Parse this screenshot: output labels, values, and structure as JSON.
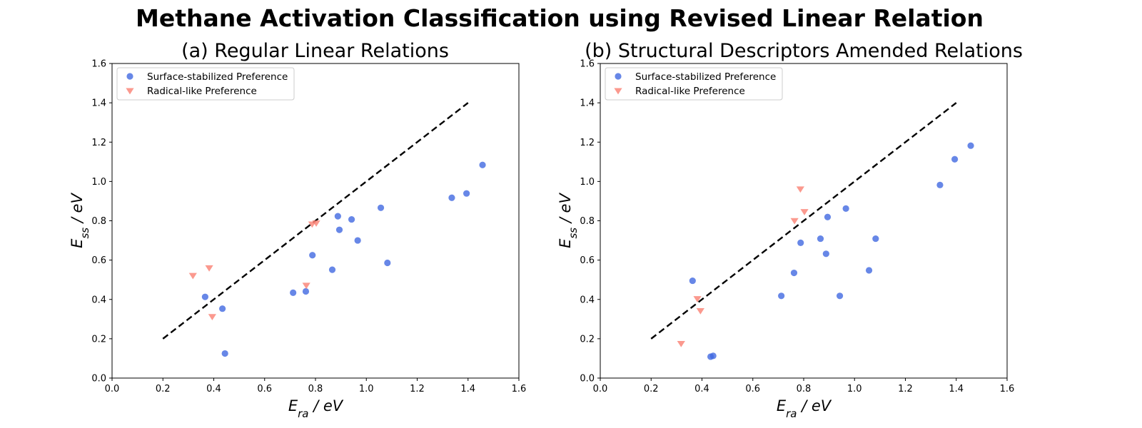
{
  "figure": {
    "title": "Methane Activation Classification using Revised Linear Relation"
  },
  "chart_data": [
    {
      "type": "scatter",
      "title": "(a) Regular Linear Relations",
      "xlabel": {
        "main": "E",
        "sub": "ra",
        "unit": " / eV"
      },
      "ylabel": {
        "main": "E",
        "sub": "ss",
        "unit": " / eV"
      },
      "xlim": [
        0,
        1.6
      ],
      "ylim": [
        0,
        1.6
      ],
      "xticks": [
        "0.0",
        "0.2",
        "0.4",
        "0.6",
        "0.8",
        "1.0",
        "1.2",
        "1.4",
        "1.6"
      ],
      "yticks": [
        "0.0",
        "0.2",
        "0.4",
        "0.6",
        "0.8",
        "1.0",
        "1.2",
        "1.4",
        "1.6"
      ],
      "grid": false,
      "legend_position": "upper-left",
      "reference_line": {
        "x": [
          0.2,
          1.4
        ],
        "y": [
          0.2,
          1.4
        ],
        "style": "dashed",
        "color": "#000000"
      },
      "series": [
        {
          "name": "Surface-stabilized Preference",
          "marker": "circle",
          "color": "#4169E1",
          "points": [
            [
              0.366,
              0.413
            ],
            [
              0.434,
              0.353
            ],
            [
              0.444,
              0.125
            ],
            [
              0.712,
              0.434
            ],
            [
              0.762,
              0.441
            ],
            [
              0.788,
              0.625
            ],
            [
              0.866,
              0.551
            ],
            [
              0.888,
              0.823
            ],
            [
              0.894,
              0.754
            ],
            [
              0.942,
              0.807
            ],
            [
              0.966,
              0.7
            ],
            [
              1.057,
              0.866
            ],
            [
              1.083,
              0.586
            ],
            [
              1.336,
              0.917
            ],
            [
              1.394,
              0.939
            ],
            [
              1.457,
              1.084
            ]
          ]
        },
        {
          "name": "Radical-like Preference",
          "marker": "triangle-down",
          "color": "#FA8072",
          "points": [
            [
              0.318,
              0.522
            ],
            [
              0.382,
              0.561
            ],
            [
              0.394,
              0.313
            ],
            [
              0.764,
              0.472
            ],
            [
              0.787,
              0.784
            ],
            [
              0.803,
              0.789
            ]
          ]
        }
      ]
    },
    {
      "type": "scatter",
      "title": "(b) Structural Descriptors Amended Relations",
      "xlabel": {
        "main": "E",
        "sub": "ra",
        "unit": " / eV"
      },
      "ylabel": {
        "main": "E",
        "sub": "ss",
        "unit": " / eV"
      },
      "xlim": [
        0,
        1.6
      ],
      "ylim": [
        0,
        1.6
      ],
      "xticks": [
        "0.0",
        "0.2",
        "0.4",
        "0.6",
        "0.8",
        "1.0",
        "1.2",
        "1.4",
        "1.6"
      ],
      "yticks": [
        "0.0",
        "0.2",
        "0.4",
        "0.6",
        "0.8",
        "1.0",
        "1.2",
        "1.4",
        "1.6"
      ],
      "grid": false,
      "legend_position": "upper-left",
      "reference_line": {
        "x": [
          0.2,
          1.4
        ],
        "y": [
          0.2,
          1.4
        ],
        "style": "dashed",
        "color": "#000000"
      },
      "series": [
        {
          "name": "Surface-stabilized Preference",
          "marker": "circle",
          "color": "#4169E1",
          "points": [
            [
              0.363,
              0.495
            ],
            [
              0.434,
              0.109
            ],
            [
              0.444,
              0.113
            ],
            [
              0.712,
              0.418
            ],
            [
              0.762,
              0.535
            ],
            [
              0.788,
              0.688
            ],
            [
              0.866,
              0.709
            ],
            [
              0.888,
              0.632
            ],
            [
              0.894,
              0.819
            ],
            [
              0.942,
              0.418
            ],
            [
              0.966,
              0.862
            ],
            [
              1.057,
              0.548
            ],
            [
              1.083,
              0.709
            ],
            [
              1.336,
              0.982
            ],
            [
              1.394,
              1.113
            ],
            [
              1.457,
              1.182
            ]
          ]
        },
        {
          "name": "Radical-like Preference",
          "marker": "triangle-down",
          "color": "#FA8072",
          "points": [
            [
              0.318,
              0.176
            ],
            [
              0.382,
              0.404
            ],
            [
              0.394,
              0.343
            ],
            [
              0.764,
              0.801
            ],
            [
              0.787,
              0.962
            ],
            [
              0.803,
              0.847
            ]
          ]
        }
      ]
    }
  ]
}
